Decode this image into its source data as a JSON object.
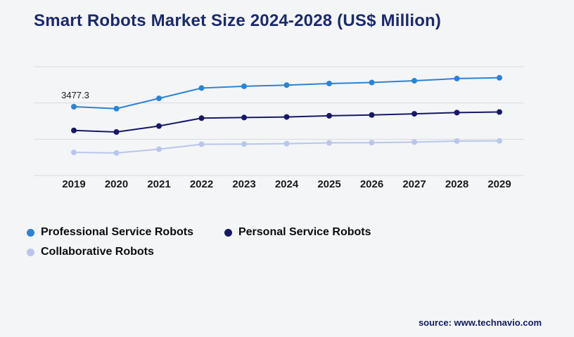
{
  "title": "Smart Robots Market Size 2024-2028 (US$ Million)",
  "source": "source: www.technavio.com",
  "colors": {
    "background": "#f4f5f7",
    "title": "#1b2a6b",
    "grid": "#d9dade",
    "axis_text": "#1a1a1a",
    "annotation_text": "#1a1a1a",
    "legend_text": "#0c0c0c",
    "source_text": "#101d5e"
  },
  "chart_data": {
    "type": "line",
    "title": "Smart Robots Market Size 2024-2028 (US$ Million)",
    "x": [
      "2019",
      "2020",
      "2021",
      "2022",
      "2023",
      "2024",
      "2025",
      "2026",
      "2027",
      "2028",
      "2029"
    ],
    "series": [
      {
        "name": "Professional Service Robots",
        "color": "#2b83d6",
        "values": [
          3477.3,
          3380,
          3900,
          4420,
          4510,
          4570,
          4650,
          4700,
          4790,
          4900,
          4940
        ]
      },
      {
        "name": "Personal Service Robots",
        "color": "#181866",
        "values": [
          2280,
          2200,
          2500,
          2900,
          2930,
          2960,
          3020,
          3060,
          3120,
          3180,
          3210
        ]
      },
      {
        "name": "Collaborative Robots",
        "color": "#b9c6ec",
        "values": [
          1170,
          1140,
          1330,
          1580,
          1590,
          1610,
          1650,
          1660,
          1690,
          1740,
          1750
        ]
      }
    ],
    "ylim": [
      0,
      5500
    ],
    "xlabel": "",
    "ylabel": "",
    "grid": "horizontal",
    "gridline_count": 4,
    "legend_position": "bottom-left",
    "annotations": [
      {
        "series": 0,
        "index": 0,
        "text": "3477.3"
      }
    ]
  }
}
